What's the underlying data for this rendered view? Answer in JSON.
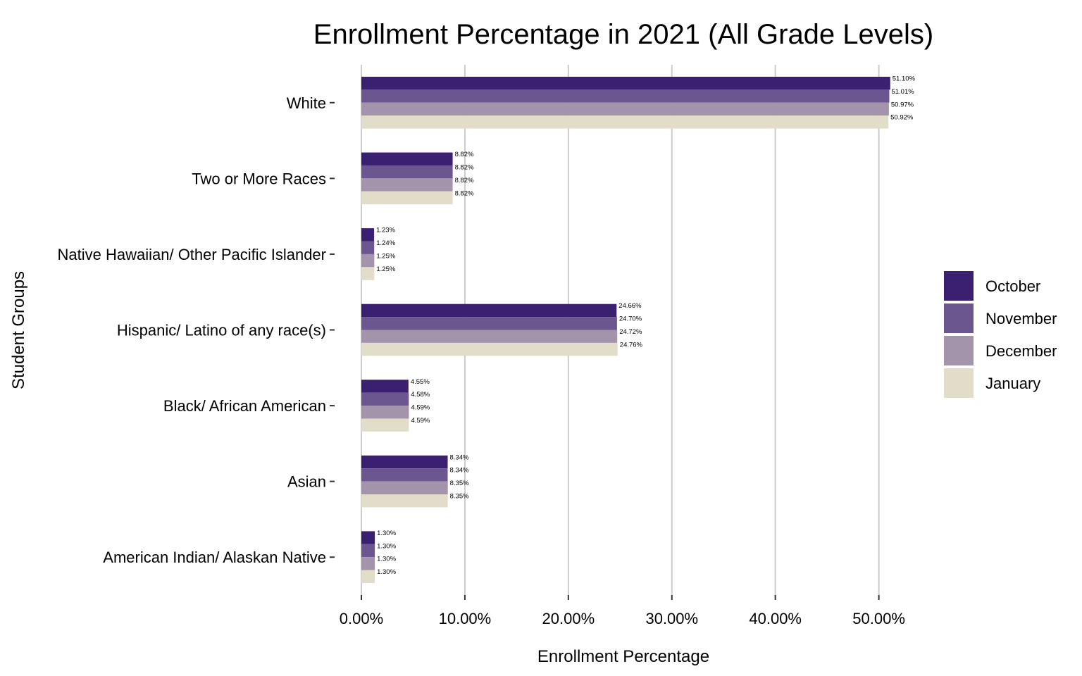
{
  "chart_data": {
    "type": "bar",
    "orientation": "horizontal",
    "title": "Enrollment Percentage in 2021 (All Grade Levels)",
    "xlabel": "Enrollment Percentage",
    "ylabel": "Student Groups",
    "xlim": [
      0,
      52
    ],
    "x_ticks": [
      0,
      10,
      20,
      30,
      40,
      50
    ],
    "x_tick_labels": [
      "0.00%",
      "10.00%",
      "20.00%",
      "30.00%",
      "40.00%",
      "50.00%"
    ],
    "grid": "vertical major gridlines",
    "legend_position": "right",
    "categories": [
      "White",
      "Two or More Races",
      "Native Hawaiian/ Other Pacific Islander",
      "Hispanic/ Latino of any race(s)",
      "Black/ African American",
      "Asian",
      "American Indian/ Alaskan Native"
    ],
    "series": [
      {
        "name": "October",
        "color": "#3b1f70",
        "values": [
          51.1,
          8.82,
          1.23,
          24.66,
          4.55,
          8.34,
          1.3
        ],
        "labels": [
          "51.10%",
          "8.82%",
          "1.23%",
          "24.66%",
          "4.55%",
          "8.34%",
          "1.30%"
        ]
      },
      {
        "name": "November",
        "color": "#6c568f",
        "values": [
          51.01,
          8.82,
          1.24,
          24.7,
          4.58,
          8.34,
          1.3
        ],
        "labels": [
          "51.01%",
          "8.82%",
          "1.24%",
          "24.70%",
          "4.58%",
          "8.34%",
          "1.30%"
        ]
      },
      {
        "name": "December",
        "color": "#a494ab",
        "values": [
          50.97,
          8.82,
          1.25,
          24.72,
          4.59,
          8.35,
          1.3
        ],
        "labels": [
          "50.97%",
          "8.82%",
          "1.25%",
          "24.72%",
          "4.59%",
          "8.35%",
          "1.30%"
        ]
      },
      {
        "name": "January",
        "color": "#e2ddc9",
        "values": [
          50.92,
          8.82,
          1.25,
          24.76,
          4.59,
          8.35,
          1.3
        ],
        "labels": [
          "50.92%",
          "8.82%",
          "1.25%",
          "24.76%",
          "4.59%",
          "8.35%",
          "1.30%"
        ]
      }
    ]
  },
  "colors": {
    "gridline": "#cccccc",
    "tick": "#333333",
    "text": "#000000",
    "background": "#ffffff"
  }
}
